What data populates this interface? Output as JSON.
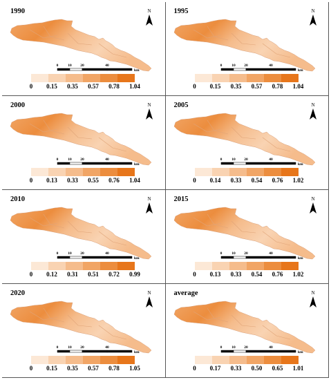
{
  "panels": [
    {
      "title": "1990",
      "ticks": [
        "0",
        "0.15",
        "0.35",
        "0.57",
        "0.78",
        "1.04"
      ]
    },
    {
      "title": "1995",
      "ticks": [
        "0",
        "0.15",
        "0.35",
        "0.57",
        "0.78",
        "1.04"
      ]
    },
    {
      "title": "2000",
      "ticks": [
        "0",
        "0.13",
        "0.33",
        "0.55",
        "0.76",
        "1.04"
      ]
    },
    {
      "title": "2005",
      "ticks": [
        "0",
        "0.14",
        "0.33",
        "0.54",
        "0.76",
        "1.02"
      ]
    },
    {
      "title": "2010",
      "ticks": [
        "0",
        "0.12",
        "0.31",
        "0.51",
        "0.72",
        "0.99"
      ]
    },
    {
      "title": "2015",
      "ticks": [
        "0",
        "0.13",
        "0.33",
        "0.54",
        "0.76",
        "1.02"
      ]
    },
    {
      "title": "2020",
      "ticks": [
        "0",
        "0.15",
        "0.35",
        "0.57",
        "0.78",
        "1.05"
      ]
    },
    {
      "title": "average",
      "ticks": [
        "0",
        "0.17",
        "0.33",
        "0.50",
        "0.65",
        "1.01"
      ]
    }
  ],
  "north_label": "N",
  "scale": {
    "labels": [
      "0",
      "10",
      "20",
      "40"
    ],
    "unit": "km"
  },
  "colors": {
    "ramp": [
      "#fce8d6",
      "#f9d3b2",
      "#f5bc8c",
      "#f1a565",
      "#ec8d3e",
      "#e7761b"
    ],
    "border": "#555555"
  }
}
